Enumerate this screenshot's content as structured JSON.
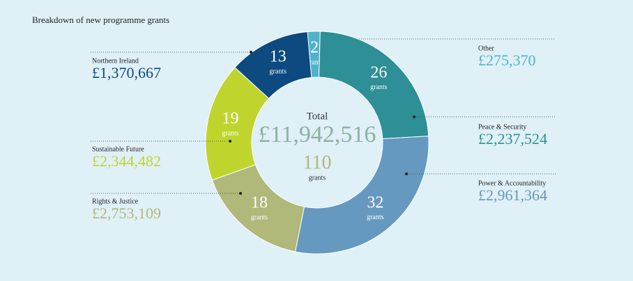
{
  "chart_data": {
    "type": "donut",
    "title": "Breakdown of new programme grants",
    "center_label": "Total",
    "total_amount": "£11,942,516",
    "total_count": 110,
    "count_label": "grants",
    "series": [
      {
        "name": "Other",
        "amount": "£275,370",
        "value": 2,
        "color": "#4fb3cc"
      },
      {
        "name": "Peace & Security",
        "amount": "£2,237,524",
        "value": 26,
        "color": "#2e8f96"
      },
      {
        "name": "Power & Accountability",
        "amount": "£2,961,364",
        "value": 32,
        "color": "#6699bf"
      },
      {
        "name": "Rights & Justice",
        "amount": "£2,753,109",
        "value": 18,
        "color": "#b0b87a"
      },
      {
        "name": "Sustainable Future",
        "amount": "£2,344,482",
        "value": 19,
        "color": "#bfd52e"
      },
      {
        "name": "Northern Ireland",
        "amount": "£1,370,667",
        "value": 13,
        "color": "#0c4a80"
      }
    ]
  }
}
